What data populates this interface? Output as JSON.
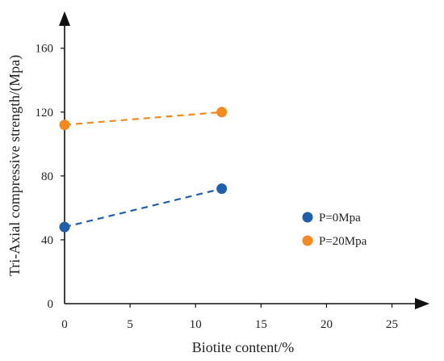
{
  "chart_data": {
    "type": "scatter",
    "xlabel": "Biotite content/%",
    "ylabel": "Tri-Axial compressive strength/(Mpa)",
    "xlim": [
      0,
      27
    ],
    "ylim": [
      0,
      172
    ],
    "x_ticks": [
      "0",
      "5",
      "10",
      "15",
      "20",
      "25"
    ],
    "x_tick_values": [
      0,
      5,
      10,
      15,
      20,
      25
    ],
    "y_ticks": [
      "0",
      "40",
      "80",
      "120",
      "160"
    ],
    "y_tick_values": [
      0,
      40,
      80,
      120,
      160
    ],
    "grid": false,
    "legend_position": "right",
    "series": [
      {
        "name": "P=0Mpa",
        "color": "#1f5fae",
        "line": "dashed",
        "x": [
          0,
          12
        ],
        "y": [
          48,
          72
        ]
      },
      {
        "name": "P=20Mpa",
        "color": "#f5891e",
        "line": "dashed",
        "x": [
          0,
          12
        ],
        "y": [
          112,
          120
        ]
      }
    ]
  }
}
